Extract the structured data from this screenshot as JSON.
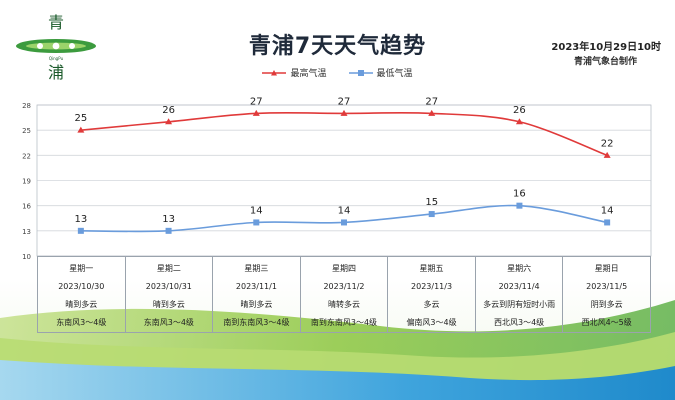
{
  "header": {
    "title": "青浦7天天气趋势",
    "issue_time": "2023年10月29日10时",
    "issuer": "青浦气象台制作"
  },
  "logo": {
    "char_top": "青",
    "char_bottom": "浦",
    "small_text": "QingPu"
  },
  "colors": {
    "high_line": "#e03a3a",
    "low_line": "#6a9cdc",
    "grid": "#d3d7dc",
    "sky_top": "#ffffff",
    "meadow_green": "#8cc63f",
    "meadow_blue": "#2f9bd6"
  },
  "chart_data": {
    "type": "line",
    "categories": [
      "星期一",
      "星期二",
      "星期三",
      "星期四",
      "星期五",
      "星期六",
      "星期日"
    ],
    "series": [
      {
        "name": "最高气温",
        "values": [
          25,
          26,
          27,
          27,
          27,
          26,
          22
        ]
      },
      {
        "name": "最低气温",
        "values": [
          13,
          13,
          14,
          14,
          15,
          16,
          14
        ]
      }
    ],
    "yticks": [
      10,
      13,
      16,
      19,
      22,
      25,
      28
    ],
    "ylim": [
      10,
      28
    ],
    "grid": true,
    "legend": "top-center"
  },
  "days": [
    {
      "weekday": "星期一",
      "date": "2023/10/30",
      "weather": "晴到多云",
      "wind": "东南风3～4级"
    },
    {
      "weekday": "星期二",
      "date": "2023/10/31",
      "weather": "晴到多云",
      "wind": "东南风3～4级"
    },
    {
      "weekday": "星期三",
      "date": "2023/11/1",
      "weather": "晴到多云",
      "wind": "南到东南风3～4级"
    },
    {
      "weekday": "星期四",
      "date": "2023/11/2",
      "weather": "晴转多云",
      "wind": "南到东南风3～4级"
    },
    {
      "weekday": "星期五",
      "date": "2023/11/3",
      "weather": "多云",
      "wind": "偏南风3～4级"
    },
    {
      "weekday": "星期六",
      "date": "2023/11/4",
      "weather": "多云到阴有短时小雨",
      "wind": "西北风3～4级"
    },
    {
      "weekday": "星期日",
      "date": "2023/11/5",
      "weather": "阴到多云",
      "wind": "西北风4～5级"
    }
  ]
}
